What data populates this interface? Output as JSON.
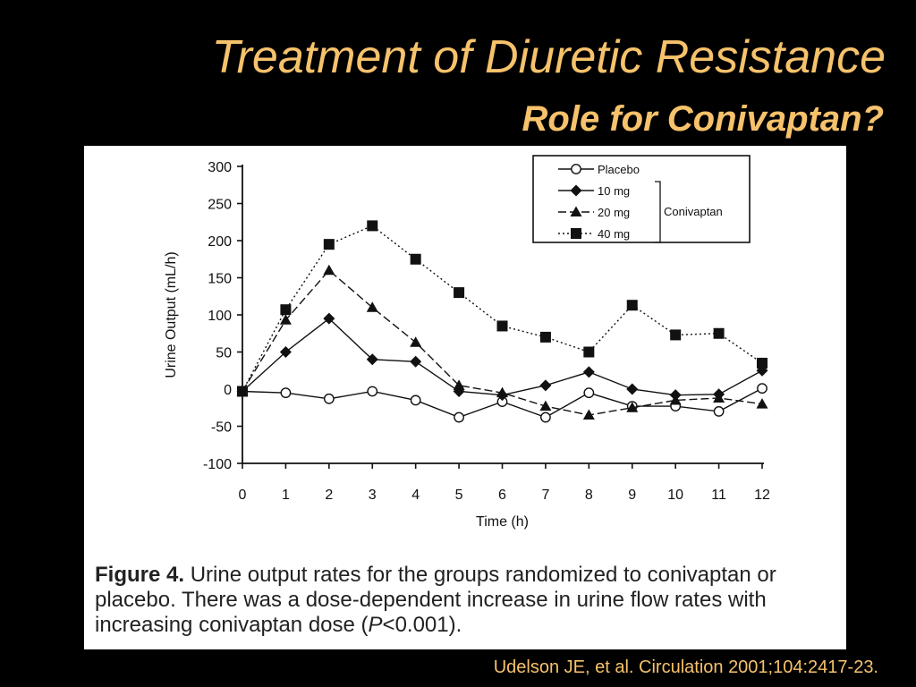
{
  "slide": {
    "title": "Treatment of Diuretic Resistance",
    "subtitle": "Role for Conivaptan?",
    "citation": "Udelson JE, et al. Circulation 2001;104:2417-23."
  },
  "caption": {
    "lead": "Figure 4.",
    "body": " Urine output rates for the groups randomized to conivaptan or placebo. There was a dose-dependent increase in urine flow rates with increasing conivaptan dose (",
    "p_symbol": "P",
    "p_rest": "<0.001)."
  },
  "colors": {
    "title": "#f6c26b",
    "background": "#000000",
    "panel": "#ffffff",
    "ink": "#111111"
  },
  "chart_data": {
    "type": "line",
    "xlabel": "Time (h)",
    "ylabel": "Urine Output (mL/h)",
    "xlim": [
      0,
      12
    ],
    "ylim": [
      -100,
      300
    ],
    "x_ticks": [
      0,
      1,
      2,
      3,
      4,
      5,
      6,
      7,
      8,
      9,
      10,
      11,
      12
    ],
    "y_ticks": [
      300,
      250,
      200,
      150,
      100,
      50,
      0,
      -50,
      -100
    ],
    "grid": false,
    "legend_position": "top-right",
    "legend_group_label": "Conivaptan",
    "x": [
      0,
      1,
      2,
      3,
      4,
      5,
      6,
      7,
      8,
      9,
      10,
      11,
      12
    ],
    "series": [
      {
        "name": "Placebo",
        "marker": "circle-open",
        "line": "solid",
        "values": [
          -3,
          -5,
          -13,
          -3,
          -15,
          -38,
          -17,
          -38,
          -5,
          -23,
          -23,
          -30,
          1
        ]
      },
      {
        "name": "10 mg",
        "marker": "diamond",
        "line": "solid",
        "values": [
          -3,
          50,
          95,
          40,
          37,
          -3,
          -8,
          5,
          23,
          0,
          -8,
          -7,
          25
        ]
      },
      {
        "name": "20 mg",
        "marker": "triangle",
        "line": "dashed",
        "values": [
          -3,
          93,
          160,
          110,
          63,
          5,
          -5,
          -23,
          -35,
          -25,
          -15,
          -12,
          -20
        ]
      },
      {
        "name": "40 mg",
        "marker": "square",
        "line": "dotted",
        "values": [
          -3,
          107,
          195,
          220,
          175,
          130,
          85,
          70,
          50,
          113,
          73,
          75,
          35
        ]
      }
    ]
  }
}
